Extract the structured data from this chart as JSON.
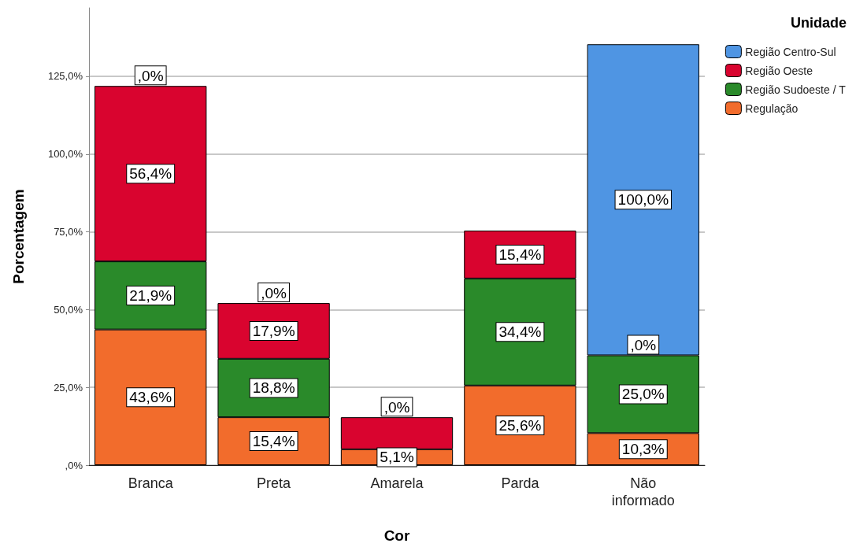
{
  "chart_data": {
    "type": "bar",
    "stacked": true,
    "xlabel": "Cor",
    "ylabel": "Porcentagem",
    "legend_title": "Unidade",
    "legend": "top right",
    "grid": "y",
    "categories": [
      "Branca",
      "Preta",
      "Amarela",
      "Parda",
      "Não\ninformado"
    ],
    "ylim": [
      0,
      147
    ],
    "yticks": [
      {
        "value": 0,
        "label": ",0%"
      },
      {
        "value": 25,
        "label": "25,0%"
      },
      {
        "value": 50,
        "label": "50,0%"
      },
      {
        "value": 75,
        "label": "75,0%"
      },
      {
        "value": 100,
        "label": "100,0%"
      },
      {
        "value": 125,
        "label": "125,0%"
      }
    ],
    "series": [
      {
        "name": "Regulação",
        "color": "#f26c2c",
        "values": [
          43.6,
          15.4,
          5.1,
          25.6,
          10.3
        ],
        "value_labels": [
          "43,6%",
          "15,4%",
          "5,1%",
          "25,6%",
          "10,3%"
        ]
      },
      {
        "name": "Região Sudoeste / T",
        "color": "#2a8a2a",
        "values": [
          21.9,
          18.8,
          null,
          34.4,
          25.0
        ],
        "value_labels": [
          "21,9%",
          "18,8%",
          null,
          "34,4%",
          "25,0%"
        ]
      },
      {
        "name": "Região Oeste",
        "color": "#d9042f",
        "values": [
          56.4,
          17.9,
          10.3,
          15.4,
          null
        ],
        "value_labels": [
          "56,4%",
          "17,9%",
          null,
          "15,4%",
          null
        ]
      },
      {
        "name": "Região Centro-Sul",
        "color": "#4f95e3",
        "values": [
          null,
          null,
          null,
          null,
          100.0
        ],
        "value_labels": [
          null,
          null,
          null,
          null,
          "100,0%"
        ]
      }
    ],
    "annotations": [
      {
        "text": ",0%",
        "x": "Branca",
        "y": 121.9
      },
      {
        "text": ",0%",
        "x": "Preta",
        "y": 52.1
      },
      {
        "text": ",0%",
        "x": "Amarela",
        "y": 15.4
      },
      {
        "text": ",0%",
        "x": "Não\ninformado",
        "y": 35.3
      }
    ]
  }
}
